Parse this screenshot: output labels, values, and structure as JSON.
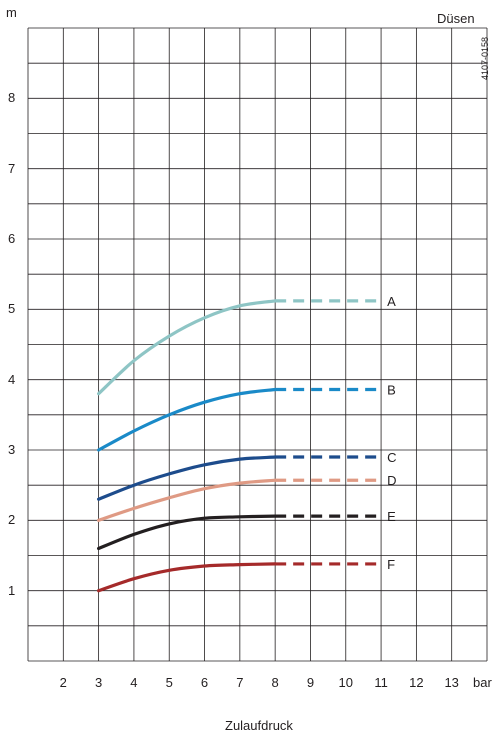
{
  "chart_data": {
    "type": "line",
    "ylabel": "m",
    "xlabel": "Zulaufdruck",
    "x_unit": "bar",
    "legend_title": "Düsen",
    "figure_code": "4107-0158",
    "xlim": [
      1,
      14
    ],
    "ylim": [
      0,
      9
    ],
    "x_ticks": [
      2,
      3,
      4,
      5,
      6,
      7,
      8,
      9,
      10,
      11,
      12,
      13
    ],
    "y_ticks": [
      1,
      2,
      3,
      4,
      5,
      6,
      7,
      8
    ],
    "grid": true,
    "series": [
      {
        "name": "A",
        "color": "#8ec5c5",
        "x": [
          3,
          4,
          5,
          6,
          7,
          8
        ],
        "y": [
          3.8,
          4.27,
          4.62,
          4.88,
          5.05,
          5.12
        ],
        "dashed_to": 11
      },
      {
        "name": "B",
        "color": "#1a8ac8",
        "x": [
          3,
          4,
          5,
          6,
          7,
          8
        ],
        "y": [
          3.0,
          3.27,
          3.5,
          3.68,
          3.8,
          3.86
        ],
        "dashed_to": 11
      },
      {
        "name": "C",
        "color": "#1d4c8c",
        "x": [
          3,
          4,
          5,
          6,
          7,
          8
        ],
        "y": [
          2.3,
          2.5,
          2.66,
          2.79,
          2.87,
          2.9
        ],
        "dashed_to": 11
      },
      {
        "name": "D",
        "color": "#df9a84",
        "x": [
          3,
          4,
          5,
          6,
          7,
          8
        ],
        "y": [
          2.0,
          2.17,
          2.32,
          2.45,
          2.53,
          2.57
        ],
        "dashed_to": 11
      },
      {
        "name": "E",
        "color": "#231f20",
        "x": [
          3,
          4,
          5,
          6,
          7,
          8
        ],
        "y": [
          1.6,
          1.8,
          1.95,
          2.03,
          2.05,
          2.06
        ],
        "dashed_to": 11
      },
      {
        "name": "F",
        "color": "#a52a2a",
        "x": [
          3,
          4,
          5,
          6,
          7,
          8
        ],
        "y": [
          1.0,
          1.17,
          1.29,
          1.35,
          1.37,
          1.38
        ],
        "dashed_to": 11
      }
    ]
  }
}
